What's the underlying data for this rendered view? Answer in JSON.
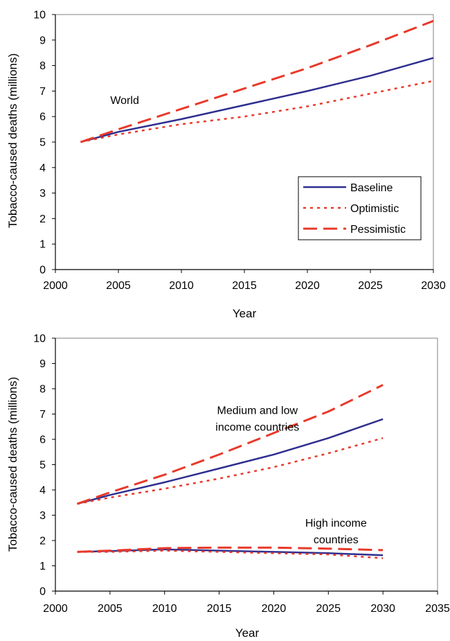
{
  "colors": {
    "baseline": "#2e2e8f",
    "scenario_red": "#e8392a",
    "axis": "#000000",
    "frame": "#808080"
  },
  "chart_data": [
    {
      "type": "line",
      "title": "",
      "xlabel": "Year",
      "ylabel": "Tobacco-caused deaths (millions)",
      "xlim": [
        2000,
        2030
      ],
      "ylim": [
        0,
        10
      ],
      "x_ticks": [
        2000,
        2005,
        2010,
        2015,
        2020,
        2025,
        2030
      ],
      "y_ticks": [
        0,
        1,
        2,
        3,
        4,
        5,
        6,
        7,
        8,
        9,
        10
      ],
      "grid": false,
      "legend_position": "bottom-right",
      "legend": [
        {
          "name": "Baseline",
          "style": "solid"
        },
        {
          "name": "Optimistic",
          "style": "dotted"
        },
        {
          "name": "Pessimistic",
          "style": "dashed"
        }
      ],
      "annotations": [
        {
          "text": "World",
          "x": 2005.5,
          "y": 6.5
        }
      ],
      "series": [
        {
          "name": "Baseline",
          "style": "solid",
          "x": [
            2002,
            2005,
            2010,
            2015,
            2020,
            2025,
            2030
          ],
          "y": [
            5.0,
            5.4,
            5.9,
            6.45,
            7.0,
            7.6,
            8.3
          ]
        },
        {
          "name": "Optimistic",
          "style": "dotted",
          "x": [
            2002,
            2005,
            2010,
            2015,
            2020,
            2025,
            2030
          ],
          "y": [
            5.0,
            5.3,
            5.7,
            6.0,
            6.4,
            6.9,
            7.4
          ]
        },
        {
          "name": "Pessimistic",
          "style": "dashed",
          "x": [
            2002,
            2005,
            2010,
            2015,
            2020,
            2025,
            2030
          ],
          "y": [
            5.0,
            5.5,
            6.3,
            7.1,
            7.9,
            8.8,
            9.75
          ]
        }
      ]
    },
    {
      "type": "line",
      "title": "",
      "xlabel": "Year",
      "ylabel": "Tobacco-caused deaths (millions)",
      "xlim": [
        2000,
        2035
      ],
      "ylim": [
        0,
        10
      ],
      "x_ticks": [
        2000,
        2005,
        2010,
        2015,
        2020,
        2025,
        2030,
        2035
      ],
      "y_ticks": [
        0,
        1,
        2,
        3,
        4,
        5,
        6,
        7,
        8,
        9,
        10
      ],
      "grid": false,
      "annotations": [
        {
          "lines": [
            "Medium and low",
            "income countries"
          ],
          "x": 2018.5,
          "y": 7.0
        },
        {
          "lines": [
            "High income",
            "countries"
          ],
          "x": 2025.7,
          "y": 2.55
        }
      ],
      "series": [
        {
          "name": "",
          "group": "Medium and low income countries",
          "style": "solid",
          "x": [
            2002,
            2005,
            2010,
            2015,
            2020,
            2025,
            2030
          ],
          "y": [
            3.45,
            3.8,
            4.3,
            4.85,
            5.4,
            6.05,
            6.8
          ]
        },
        {
          "name": "",
          "group": "Medium and low income countries",
          "style": "dotted",
          "x": [
            2002,
            2005,
            2010,
            2015,
            2020,
            2025,
            2030
          ],
          "y": [
            3.45,
            3.7,
            4.05,
            4.45,
            4.9,
            5.45,
            6.05
          ]
        },
        {
          "name": "",
          "group": "Medium and low income countries",
          "style": "dashed",
          "x": [
            2002,
            2005,
            2010,
            2015,
            2020,
            2025,
            2030
          ],
          "y": [
            3.45,
            3.9,
            4.6,
            5.4,
            6.25,
            7.1,
            8.15
          ]
        },
        {
          "name": "",
          "group": "High income countries",
          "style": "solid",
          "x": [
            2002,
            2005,
            2010,
            2015,
            2020,
            2025,
            2030
          ],
          "y": [
            1.55,
            1.58,
            1.65,
            1.6,
            1.55,
            1.5,
            1.42
          ]
        },
        {
          "name": "",
          "group": "High income countries",
          "style": "dotted",
          "x": [
            2002,
            2005,
            2010,
            2015,
            2020,
            2025,
            2030
          ],
          "y": [
            1.55,
            1.55,
            1.6,
            1.55,
            1.5,
            1.45,
            1.3
          ]
        },
        {
          "name": "",
          "group": "High income countries",
          "style": "dashed",
          "x": [
            2002,
            2005,
            2010,
            2015,
            2020,
            2025,
            2030
          ],
          "y": [
            1.55,
            1.6,
            1.7,
            1.72,
            1.72,
            1.68,
            1.62
          ]
        }
      ]
    }
  ]
}
